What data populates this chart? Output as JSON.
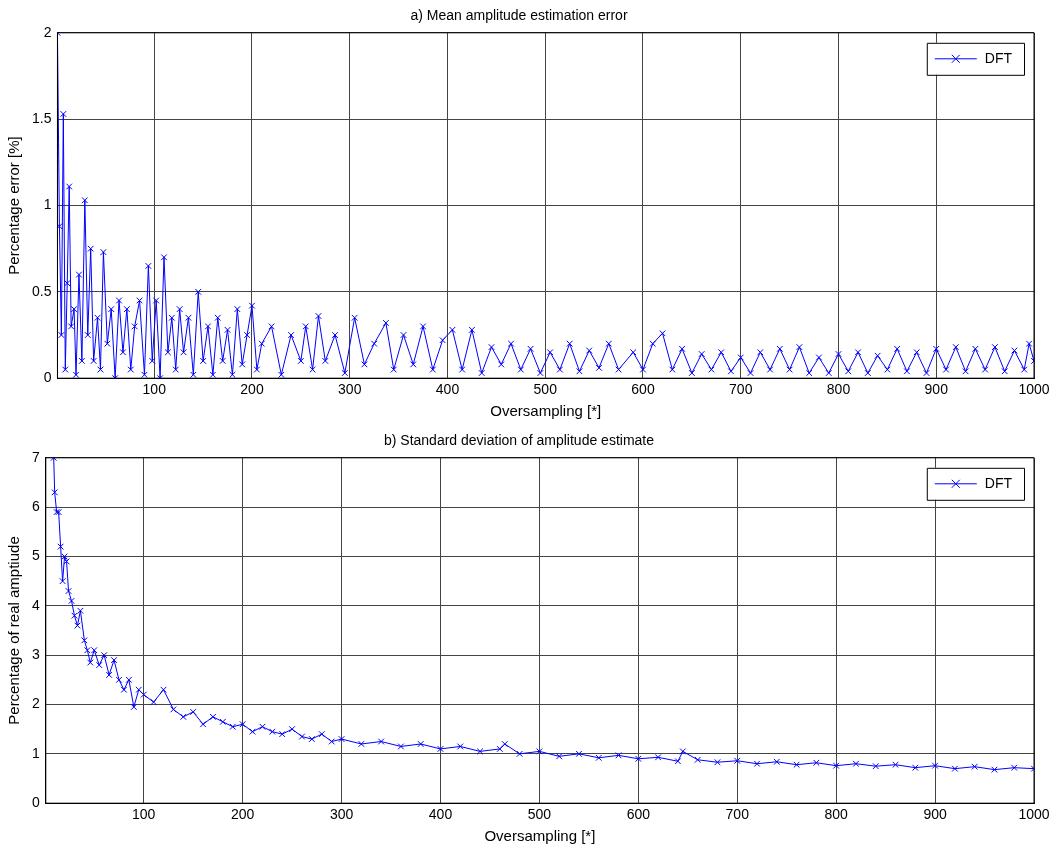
{
  "chart_data": [
    {
      "type": "line",
      "title": "a) Mean amplitude estimation error",
      "xlabel": "Oversampling [*]",
      "ylabel": "Percentage error [%]",
      "xlim": [
        1,
        1000
      ],
      "xticks": [
        100,
        200,
        300,
        400,
        500,
        600,
        700,
        800,
        900,
        1000
      ],
      "ylim": [
        0,
        2
      ],
      "yticks": [
        0,
        0.5,
        1,
        1.5,
        2
      ],
      "grid": true,
      "legend": "top right",
      "marker": "cross",
      "line_style": "solid",
      "series": [
        {
          "name": "DFT",
          "color": "#0000ff",
          "x": [
            1,
            3,
            5,
            7,
            9,
            11,
            13,
            15,
            18,
            20,
            23,
            26,
            29,
            32,
            35,
            38,
            42,
            45,
            48,
            52,
            56,
            60,
            64,
            68,
            72,
            76,
            80,
            85,
            90,
            94,
            98,
            102,
            106,
            110,
            114,
            118,
            122,
            126,
            130,
            135,
            140,
            145,
            150,
            155,
            160,
            165,
            170,
            175,
            180,
            185,
            190,
            195,
            200,
            205,
            210,
            220,
            230,
            240,
            250,
            255,
            262,
            268,
            275,
            285,
            295,
            305,
            315,
            325,
            337,
            345,
            355,
            365,
            375,
            385,
            395,
            405,
            415,
            425,
            435,
            445,
            455,
            465,
            475,
            485,
            495,
            505,
            515,
            525,
            535,
            545,
            555,
            565,
            575,
            590,
            600,
            610,
            620,
            630,
            640,
            650,
            660,
            670,
            680,
            690,
            700,
            710,
            720,
            730,
            740,
            750,
            760,
            770,
            780,
            790,
            800,
            810,
            820,
            830,
            840,
            850,
            860,
            870,
            880,
            890,
            900,
            910,
            920,
            930,
            940,
            950,
            960,
            970,
            980,
            990,
            995,
            1000
          ],
          "values": [
            2.0,
            0.88,
            0.25,
            1.53,
            0.05,
            0.55,
            1.11,
            0.3,
            0.4,
            0.02,
            0.6,
            0.1,
            1.03,
            0.25,
            0.75,
            0.1,
            0.35,
            0.05,
            0.73,
            0.2,
            0.4,
            0.0,
            0.45,
            0.15,
            0.4,
            0.05,
            0.3,
            0.45,
            0.02,
            0.65,
            0.1,
            0.45,
            0.0,
            0.7,
            0.15,
            0.35,
            0.05,
            0.4,
            0.15,
            0.35,
            0.02,
            0.5,
            0.1,
            0.3,
            0.02,
            0.35,
            0.1,
            0.28,
            0.02,
            0.4,
            0.08,
            0.25,
            0.42,
            0.05,
            0.2,
            0.3,
            0.02,
            0.25,
            0.1,
            0.3,
            0.05,
            0.36,
            0.1,
            0.25,
            0.03,
            0.35,
            0.08,
            0.2,
            0.32,
            0.05,
            0.25,
            0.08,
            0.3,
            0.05,
            0.22,
            0.28,
            0.05,
            0.28,
            0.03,
            0.18,
            0.08,
            0.2,
            0.05,
            0.17,
            0.03,
            0.15,
            0.05,
            0.2,
            0.04,
            0.16,
            0.06,
            0.2,
            0.05,
            0.15,
            0.05,
            0.2,
            0.26,
            0.05,
            0.17,
            0.03,
            0.14,
            0.05,
            0.15,
            0.04,
            0.12,
            0.03,
            0.15,
            0.05,
            0.17,
            0.05,
            0.18,
            0.03,
            0.12,
            0.03,
            0.14,
            0.04,
            0.15,
            0.03,
            0.13,
            0.05,
            0.17,
            0.04,
            0.15,
            0.03,
            0.17,
            0.05,
            0.18,
            0.04,
            0.17,
            0.05,
            0.18,
            0.04,
            0.16,
            0.05,
            0.2,
            0.1
          ]
        }
      ]
    },
    {
      "type": "line",
      "title": "b) Standard deviation of amplitude estimate",
      "xlabel": "Oversampling [*]",
      "ylabel": "Percentage of real amptiude",
      "xlim": [
        1,
        1000
      ],
      "xticks": [
        100,
        200,
        300,
        400,
        500,
        600,
        700,
        800,
        900,
        1000
      ],
      "ylim": [
        0,
        7
      ],
      "yticks": [
        0,
        1,
        2,
        3,
        4,
        5,
        6,
        7
      ],
      "grid": true,
      "legend": "top right",
      "marker": "cross",
      "line_style": "solid",
      "series": [
        {
          "name": "DFT",
          "color": "#0000ff",
          "x": [
            9,
            10,
            12,
            14,
            16,
            18,
            20,
            22,
            24,
            27,
            30,
            33,
            36,
            40,
            43,
            46,
            50,
            55,
            60,
            65,
            70,
            75,
            80,
            85,
            90,
            95,
            100,
            110,
            120,
            130,
            140,
            150,
            160,
            170,
            180,
            190,
            200,
            210,
            220,
            230,
            240,
            250,
            260,
            270,
            280,
            290,
            300,
            320,
            340,
            360,
            380,
            400,
            420,
            440,
            460,
            465,
            480,
            500,
            520,
            540,
            560,
            580,
            600,
            620,
            640,
            645,
            660,
            680,
            700,
            720,
            740,
            760,
            780,
            800,
            820,
            840,
            860,
            880,
            900,
            920,
            940,
            960,
            980,
            1000
          ],
          "values": [
            7.0,
            6.3,
            5.9,
            5.9,
            5.2,
            4.5,
            5.0,
            4.9,
            4.3,
            4.1,
            3.8,
            3.6,
            3.9,
            3.3,
            3.1,
            2.85,
            3.1,
            2.8,
            3.0,
            2.6,
            2.9,
            2.5,
            2.3,
            2.5,
            1.95,
            2.3,
            2.2,
            2.05,
            2.3,
            1.9,
            1.75,
            1.85,
            1.6,
            1.75,
            1.65,
            1.55,
            1.6,
            1.45,
            1.55,
            1.45,
            1.4,
            1.5,
            1.35,
            1.3,
            1.4,
            1.25,
            1.3,
            1.2,
            1.25,
            1.15,
            1.2,
            1.1,
            1.15,
            1.05,
            1.1,
            1.2,
            1.0,
            1.05,
            0.95,
            1.0,
            0.92,
            0.97,
            0.9,
            0.93,
            0.85,
            1.05,
            0.88,
            0.83,
            0.86,
            0.8,
            0.84,
            0.78,
            0.82,
            0.76,
            0.8,
            0.75,
            0.78,
            0.72,
            0.76,
            0.7,
            0.74,
            0.68,
            0.72,
            0.7
          ]
        }
      ]
    }
  ]
}
